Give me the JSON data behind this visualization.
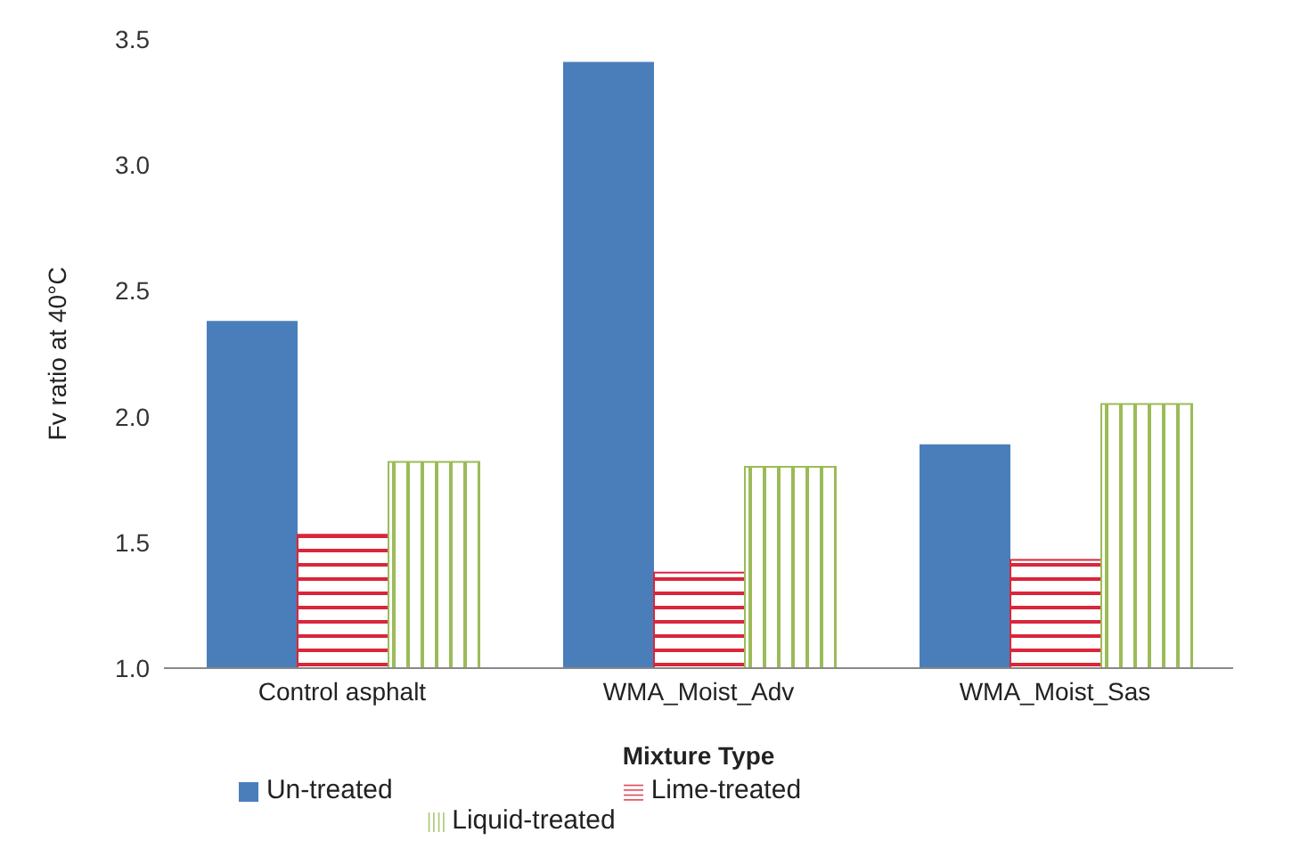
{
  "chart_data": {
    "type": "bar",
    "xlabel": "Mixture Type",
    "ylabel": "Fv ratio at 40°C",
    "categories": [
      "Control asphalt",
      "WMA_Moist_Adv",
      "WMA_Moist_Sas"
    ],
    "series": [
      {
        "name": "Un-treated",
        "color": "#4a7ebb",
        "values": [
          2.38,
          3.41,
          1.89
        ]
      },
      {
        "name": "Lime-treated",
        "color": "#d9263a",
        "values": [
          1.53,
          1.38,
          1.43
        ]
      },
      {
        "name": "Liquid-treated",
        "color": "#9bbb59",
        "values": [
          1.82,
          1.8,
          2.05
        ]
      }
    ],
    "ylim": [
      1.0,
      3.5
    ],
    "yticks": [
      {
        "value": 1.0,
        "label": "1.0"
      },
      {
        "value": 1.5,
        "label": "1.5"
      },
      {
        "value": 2.0,
        "label": "2.0"
      },
      {
        "value": 2.5,
        "label": "2.5"
      },
      {
        "value": 3.0,
        "label": "3.0"
      },
      {
        "value": 3.5,
        "label": "3.5"
      }
    ],
    "legend": "bottom"
  }
}
